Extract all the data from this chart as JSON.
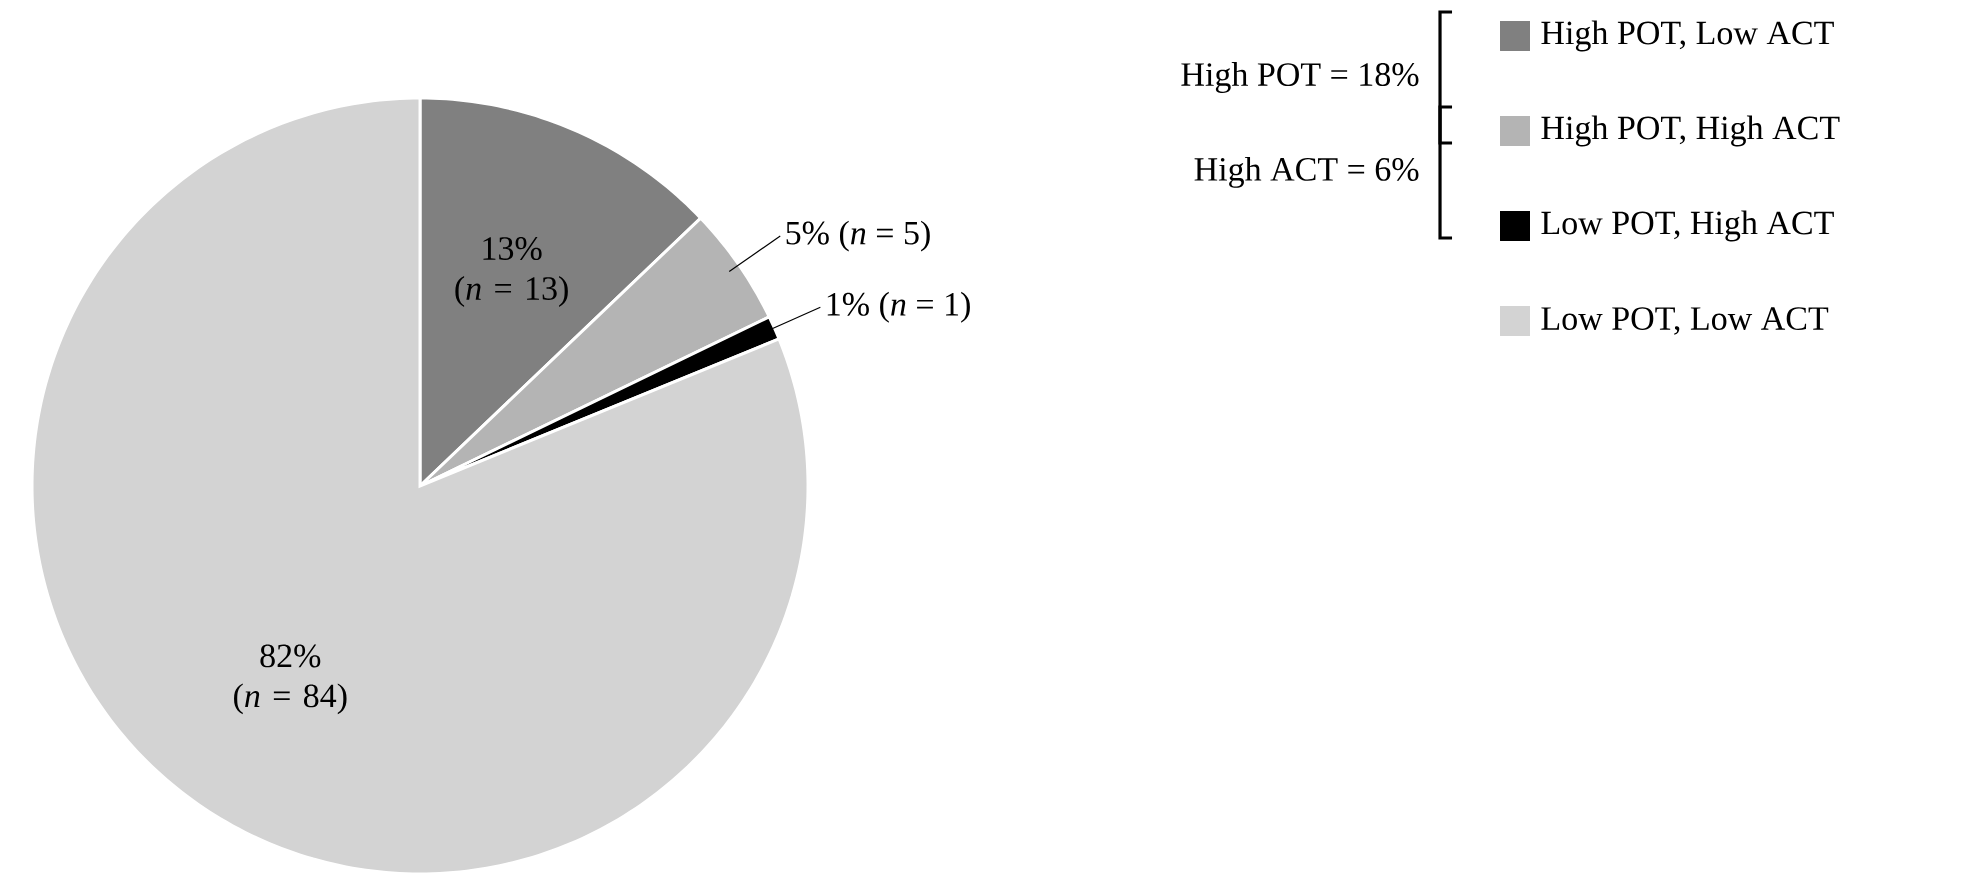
{
  "chart_data": {
    "type": "pie",
    "categories": [
      "High POT, Low ACT",
      "High POT, High ACT",
      "Low POT, High ACT",
      "Low POT, Low ACT"
    ],
    "values": [
      13,
      5,
      1,
      82
    ],
    "colors": [
      "#808080",
      "#b4b4b4",
      "#000000",
      "#d3d3d3"
    ],
    "value_labels": [
      "13% (*n* = 13)",
      "5% (*n* = 5)",
      "1% (*n* = 1)",
      "82% (*n* = 84)"
    ],
    "annotations": [
      "High POT = 18%",
      "High ACT = 6%"
    ],
    "legend": "top right"
  }
}
